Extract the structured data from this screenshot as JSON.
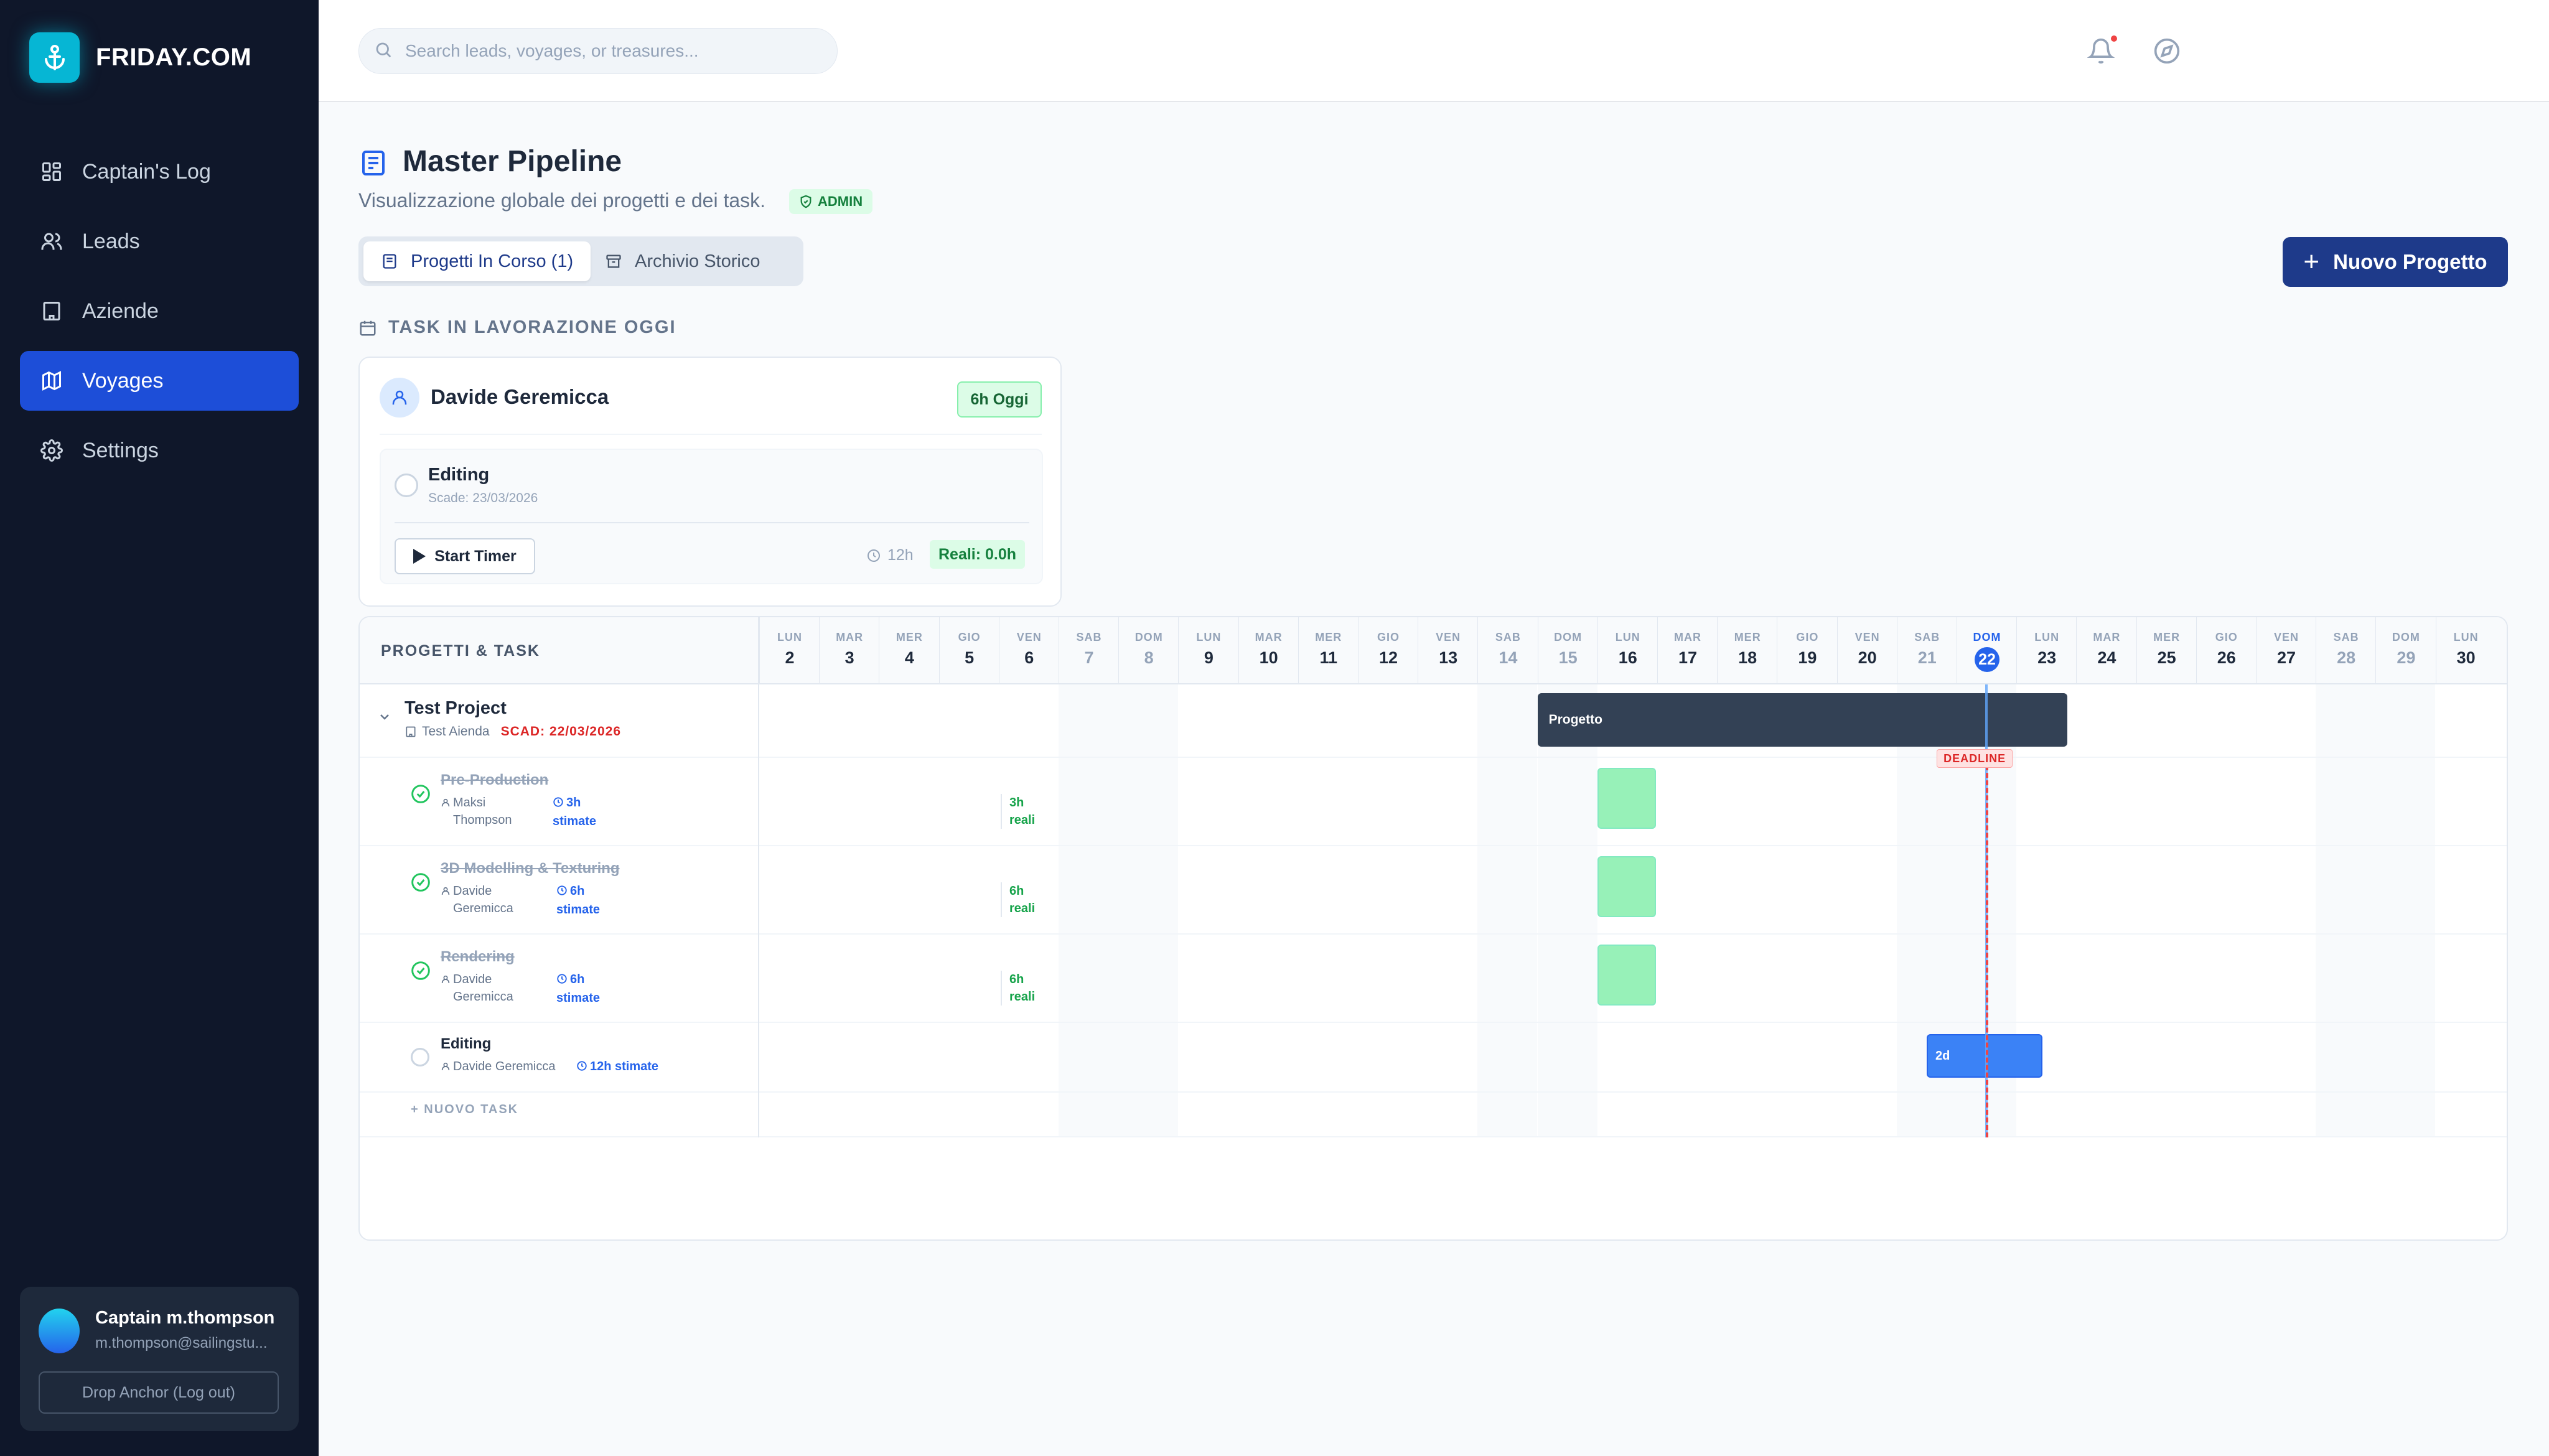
{
  "brand": {
    "name": "FRIDAY.COM",
    "logo_icon": "anchor-icon",
    "accent": "#06b6d4"
  },
  "sidebar": {
    "items": [
      {
        "label": "Captain's Log",
        "icon": "dashboard-icon",
        "active": false
      },
      {
        "label": "Leads",
        "icon": "users-icon",
        "active": false
      },
      {
        "label": "Aziende",
        "icon": "building-icon",
        "active": false
      },
      {
        "label": "Voyages",
        "icon": "map-icon",
        "active": true
      },
      {
        "label": "Settings",
        "icon": "gear-icon",
        "active": false
      }
    ],
    "user": {
      "name": "Captain m.thompson",
      "email": "m.thompson@sailingstu...",
      "logout_label": "Drop Anchor (Log out)"
    }
  },
  "topbar": {
    "search_placeholder": "Search leads, voyages, or treasures..."
  },
  "page": {
    "title": "Master Pipeline",
    "subtitle": "Visualizzazione globale dei progetti e dei task.",
    "admin_badge": "ADMIN",
    "tabs": [
      {
        "label": "Progetti In Corso (1)",
        "active": true
      },
      {
        "label": "Archivio Storico",
        "active": false
      }
    ],
    "new_project_label": "Nuovo Progetto"
  },
  "today": {
    "section_title": "TASK IN LAVORAZIONE OGGI",
    "person": "Davide Geremicca",
    "hours_today": "6h Oggi",
    "task": {
      "name": "Editing",
      "due": "Scade: 23/03/2026",
      "start_label": "Start Timer",
      "estimate": "12h",
      "real": "Reali: 0.0h"
    }
  },
  "gantt": {
    "left_header": "PROGETTI & TASK",
    "days": [
      {
        "n": "LUN",
        "d": "2"
      },
      {
        "n": "MAR",
        "d": "3"
      },
      {
        "n": "MER",
        "d": "4"
      },
      {
        "n": "GIO",
        "d": "5"
      },
      {
        "n": "VEN",
        "d": "6"
      },
      {
        "n": "SAB",
        "d": "7"
      },
      {
        "n": "DOM",
        "d": "8"
      },
      {
        "n": "LUN",
        "d": "9"
      },
      {
        "n": "MAR",
        "d": "10"
      },
      {
        "n": "MER",
        "d": "11"
      },
      {
        "n": "GIO",
        "d": "12"
      },
      {
        "n": "VEN",
        "d": "13"
      },
      {
        "n": "SAB",
        "d": "14"
      },
      {
        "n": "DOM",
        "d": "15"
      },
      {
        "n": "LUN",
        "d": "16"
      },
      {
        "n": "MAR",
        "d": "17"
      },
      {
        "n": "MER",
        "d": "18"
      },
      {
        "n": "GIO",
        "d": "19"
      },
      {
        "n": "VEN",
        "d": "20"
      },
      {
        "n": "SAB",
        "d": "21"
      },
      {
        "n": "DOM",
        "d": "22"
      },
      {
        "n": "LUN",
        "d": "23"
      },
      {
        "n": "MAR",
        "d": "24"
      },
      {
        "n": "MER",
        "d": "25"
      },
      {
        "n": "GIO",
        "d": "26"
      },
      {
        "n": "VEN",
        "d": "27"
      },
      {
        "n": "SAB",
        "d": "28"
      },
      {
        "n": "DOM",
        "d": "29"
      },
      {
        "n": "LUN",
        "d": "30"
      }
    ],
    "today_day": "22",
    "project": {
      "name": "Test Project",
      "company": "Test Aienda",
      "deadline_text": "SCAD: 22/03/2026",
      "bar_label": "Progetto",
      "start_day": "15",
      "end_day": "24"
    },
    "deadline_label": "DEADLINE",
    "tasks": [
      {
        "title": "Pre-Production",
        "person_line1": "Maksi",
        "person_line2": "Thompson",
        "est_line1": "3h",
        "est_line2": "stimate",
        "real_line1": "3h",
        "real_line2": "reali",
        "done": true,
        "day": "16"
      },
      {
        "title": "3D Modelling & Texturing",
        "person_line1": "Davide",
        "person_line2": "Geremicca",
        "est_line1": "6h",
        "est_line2": "stimate",
        "real_line1": "6h",
        "real_line2": "reali",
        "done": true,
        "day": "16"
      },
      {
        "title": "Rendering",
        "person_line1": "Davide",
        "person_line2": "Geremicca",
        "est_line1": "6h",
        "est_line2": "stimate",
        "real_line1": "6h",
        "real_line2": "reali",
        "done": true,
        "day": "16"
      }
    ],
    "open_task": {
      "title": "Editing",
      "person": "Davide Geremicca",
      "estimate": "12h stimate",
      "bar_label": "2d",
      "start_day": "22",
      "end_day": "23"
    },
    "new_task_label": "NUOVO TASK"
  }
}
